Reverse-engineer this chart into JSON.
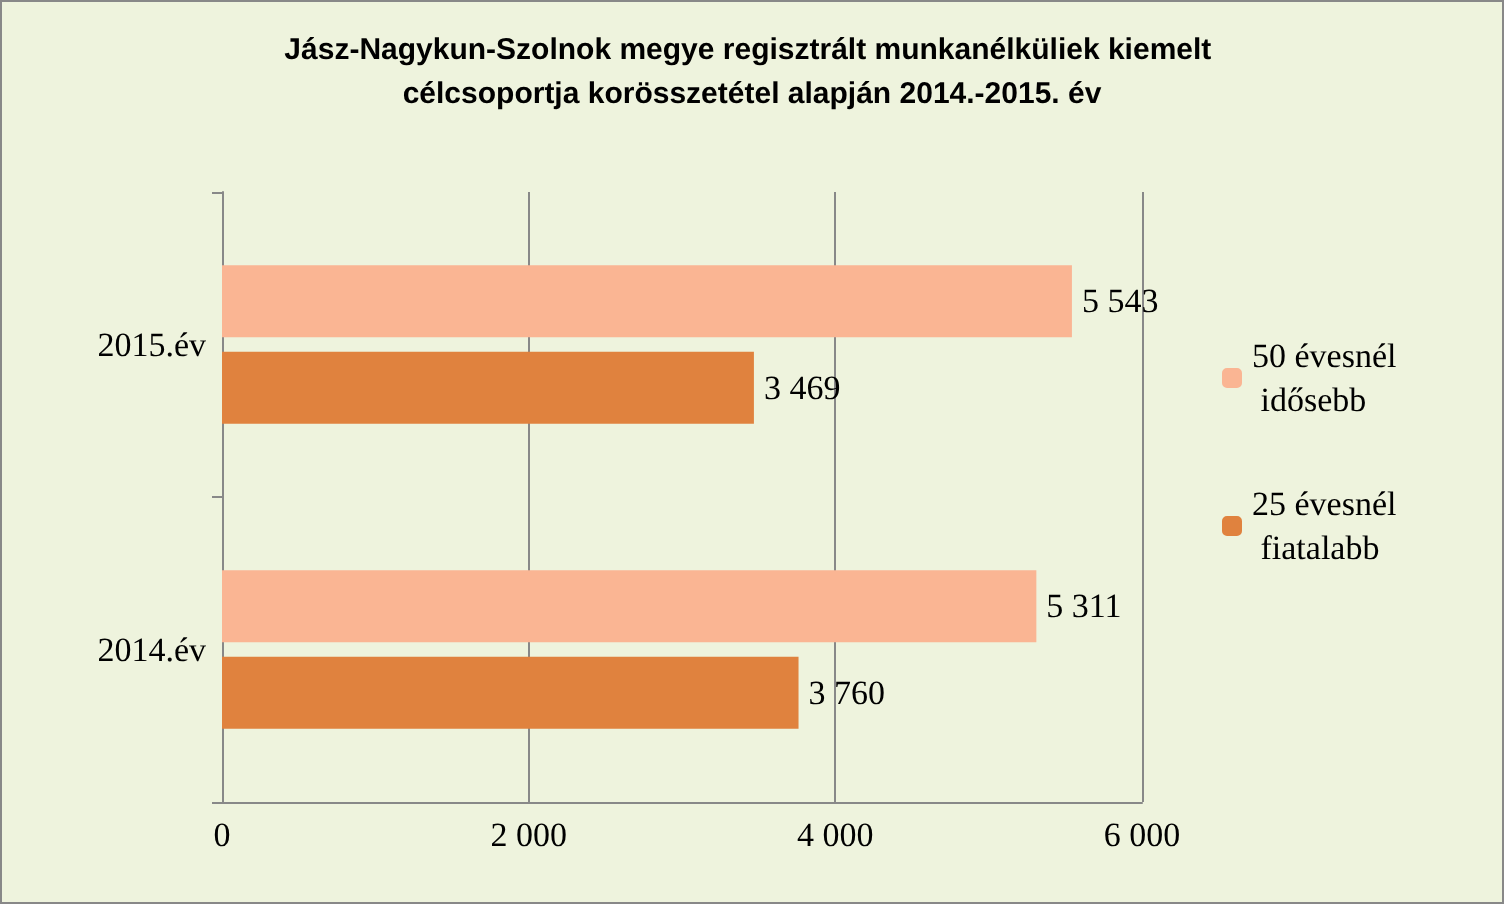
{
  "chart_data": {
    "type": "bar",
    "orientation": "horizontal",
    "title": "Jász-Nagykun-Szolnok megye regisztrált munkanélküliek kiemelt célcsoportja korösszetétel alapján 2014.-2015. év",
    "categories": [
      "2015.év",
      "2014.év"
    ],
    "series": [
      {
        "name": "50 évesnél idősebb",
        "color": "#fab593",
        "values": [
          5543,
          5311
        ],
        "value_labels": [
          "5 543",
          "5 311"
        ]
      },
      {
        "name": "25 évesnél fiatalabb",
        "color": "#e0823e",
        "values": [
          3469,
          3760
        ],
        "value_labels": [
          "3 469",
          "3 760"
        ]
      }
    ],
    "xlim": [
      0,
      6000
    ],
    "xticks": [
      0,
      {
        "value": 2000,
        "label": "2 000"
      },
      {
        "value": 4000,
        "label": "4 000"
      },
      {
        "value": 6000,
        "label": "6 000"
      }
    ],
    "grid": "x",
    "legend": "right"
  }
}
